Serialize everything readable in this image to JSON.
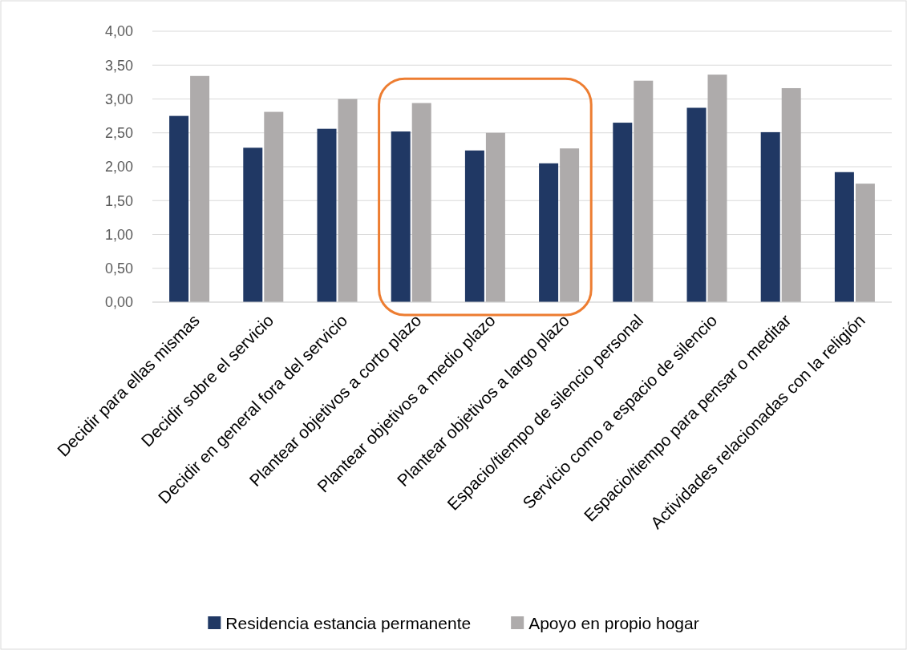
{
  "chart_data": {
    "type": "bar",
    "categories": [
      "Decidir para ellas mismas",
      "Decidir sobre el servicio",
      "Decidir en general fora del servicio",
      "Plantear objetivos a corto plazo",
      "Plantear objetivos a medio plazo",
      "Plantear objetivos a largo plazo",
      "Espacio/tiempo de silencio personal",
      "Servicio como a espacio de silencio",
      "Espacio/tiempo para pensar o meditar",
      "Actividades relacionadas con la religión"
    ],
    "series": [
      {
        "name": "Residencia estancia permanente",
        "color": "#203864",
        "values": [
          2.75,
          2.28,
          2.56,
          2.52,
          2.24,
          2.05,
          2.65,
          2.87,
          2.51,
          1.92
        ]
      },
      {
        "name": "Apoyo en propio hogar",
        "color": "#aeabab",
        "values": [
          3.34,
          2.81,
          3.0,
          2.94,
          2.5,
          2.27,
          3.27,
          3.36,
          3.16,
          1.75
        ]
      }
    ],
    "ylim": [
      0,
      4
    ],
    "yticks": [
      {
        "value": 0,
        "label": "0,00"
      },
      {
        "value": 0.5,
        "label": "0,50"
      },
      {
        "value": 1,
        "label": "1,00"
      },
      {
        "value": 1.5,
        "label": "1,50"
      },
      {
        "value": 2,
        "label": "2,00"
      },
      {
        "value": 2.5,
        "label": "2,50"
      },
      {
        "value": 3,
        "label": "3,00"
      },
      {
        "value": 3.5,
        "label": "3,50"
      },
      {
        "value": 4,
        "label": "4,00"
      }
    ],
    "grid": "y",
    "legend": "bottom"
  }
}
